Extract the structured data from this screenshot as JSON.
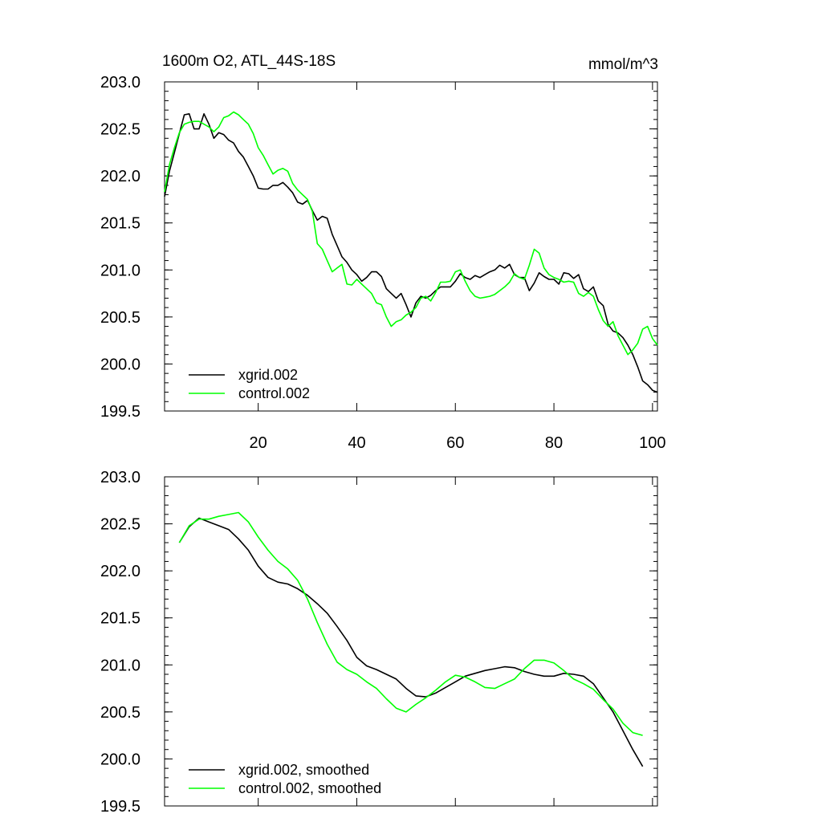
{
  "chart_data": [
    {
      "type": "line",
      "title": "1600m O2, ATL_44S-18S",
      "units": "mmol/m^3",
      "xlabel": "",
      "ylabel": "",
      "xlim": [
        1,
        101
      ],
      "ylim": [
        199.5,
        203.0
      ],
      "xticks": [
        20,
        40,
        60,
        80,
        100
      ],
      "xtick_labels": [
        "20",
        "40",
        "60",
        "80",
        "100"
      ],
      "yticks": [
        199.5,
        200.0,
        200.5,
        201.0,
        201.5,
        202.0,
        202.5,
        203.0
      ],
      "ytick_labels": [
        "199.5",
        "200.0",
        "200.5",
        "201.0",
        "201.5",
        "202.0",
        "202.5",
        "203.0"
      ],
      "legend_position": "bottom-left",
      "series": [
        {
          "name": "xgrid.002",
          "color": "#000000",
          "x": [
            1,
            2,
            3,
            4,
            5,
            6,
            7,
            8,
            9,
            10,
            11,
            12,
            13,
            14,
            15,
            16,
            17,
            18,
            19,
            20,
            21,
            22,
            23,
            24,
            25,
            26,
            27,
            28,
            29,
            30,
            31,
            32,
            33,
            34,
            35,
            36,
            37,
            38,
            39,
            40,
            41,
            42,
            43,
            44,
            45,
            46,
            47,
            48,
            49,
            50,
            51,
            52,
            53,
            54,
            55,
            56,
            57,
            58,
            59,
            60,
            61,
            62,
            63,
            64,
            65,
            66,
            67,
            68,
            69,
            70,
            71,
            72,
            73,
            74,
            75,
            76,
            77,
            78,
            79,
            80,
            81,
            82,
            83,
            84,
            85,
            86,
            87,
            88,
            89,
            90,
            91,
            92,
            93,
            94,
            95,
            96,
            97,
            98,
            99,
            100,
            101
          ],
          "values": [
            201.78,
            202.05,
            202.25,
            202.45,
            202.65,
            202.66,
            202.5,
            202.5,
            202.66,
            202.55,
            202.4,
            202.46,
            202.44,
            202.38,
            202.35,
            202.26,
            202.2,
            202.1,
            202.0,
            201.87,
            201.86,
            201.86,
            201.9,
            201.9,
            201.93,
            201.88,
            201.82,
            201.72,
            201.7,
            201.74,
            201.63,
            201.53,
            201.57,
            201.55,
            201.38,
            201.26,
            201.14,
            201.08,
            201.0,
            200.95,
            200.88,
            200.92,
            200.98,
            200.98,
            200.93,
            200.8,
            200.75,
            200.7,
            200.75,
            200.63,
            200.5,
            200.65,
            200.72,
            200.7,
            200.73,
            200.78,
            200.82,
            200.82,
            200.82,
            200.88,
            200.96,
            200.92,
            200.9,
            200.94,
            200.92,
            200.95,
            200.98,
            201.0,
            201.05,
            201.02,
            201.06,
            200.95,
            200.92,
            200.92,
            200.78,
            200.86,
            200.97,
            200.93,
            200.9,
            200.9,
            200.85,
            200.97,
            200.96,
            200.91,
            200.95,
            200.8,
            200.77,
            200.82,
            200.67,
            200.62,
            200.42,
            200.35,
            200.33,
            200.28,
            200.2,
            200.1,
            199.97,
            199.82,
            199.78,
            199.72,
            199.7
          ]
        },
        {
          "name": "control.002",
          "color": "#00ff00",
          "x": [
            1,
            2,
            3,
            4,
            5,
            6,
            7,
            8,
            9,
            10,
            11,
            12,
            13,
            14,
            15,
            16,
            17,
            18,
            19,
            20,
            21,
            22,
            23,
            24,
            25,
            26,
            27,
            28,
            29,
            30,
            31,
            32,
            33,
            34,
            35,
            36,
            37,
            38,
            39,
            40,
            41,
            42,
            43,
            44,
            45,
            46,
            47,
            48,
            49,
            50,
            51,
            52,
            53,
            54,
            55,
            56,
            57,
            58,
            59,
            60,
            61,
            62,
            63,
            64,
            65,
            66,
            67,
            68,
            69,
            70,
            71,
            72,
            73,
            74,
            75,
            76,
            77,
            78,
            79,
            80,
            81,
            82,
            83,
            84,
            85,
            86,
            87,
            88,
            89,
            90,
            91,
            92,
            93,
            94,
            95,
            96,
            97,
            98,
            99,
            100,
            101
          ],
          "values": [
            201.83,
            202.12,
            202.3,
            202.46,
            202.55,
            202.57,
            202.58,
            202.58,
            202.55,
            202.52,
            202.47,
            202.52,
            202.62,
            202.64,
            202.68,
            202.65,
            202.6,
            202.55,
            202.45,
            202.3,
            202.22,
            202.12,
            202.02,
            202.06,
            202.08,
            202.05,
            201.92,
            201.85,
            201.8,
            201.75,
            201.62,
            201.28,
            201.22,
            201.1,
            200.98,
            201.02,
            201.06,
            200.85,
            200.84,
            200.9,
            200.85,
            200.8,
            200.75,
            200.65,
            200.63,
            200.5,
            200.4,
            200.45,
            200.47,
            200.52,
            200.55,
            200.6,
            200.7,
            200.72,
            200.67,
            200.76,
            200.87,
            200.87,
            200.88,
            200.98,
            201.0,
            200.88,
            200.78,
            200.72,
            200.7,
            200.71,
            200.72,
            200.74,
            200.78,
            200.82,
            200.87,
            200.96,
            200.92,
            200.9,
            201.05,
            201.22,
            201.18,
            201.02,
            200.95,
            200.92,
            200.9,
            200.87,
            200.88,
            200.87,
            200.75,
            200.72,
            200.76,
            200.72,
            200.58,
            200.46,
            200.4,
            200.45,
            200.3,
            200.2,
            200.1,
            200.15,
            200.22,
            200.37,
            200.4,
            200.27,
            200.2
          ]
        }
      ]
    },
    {
      "type": "line",
      "title": "",
      "xlabel": "",
      "ylabel": "",
      "xlim": [
        1,
        101
      ],
      "ylim": [
        199.5,
        203.0
      ],
      "xticks": [
        20,
        40,
        60,
        80,
        100
      ],
      "xtick_labels": [],
      "yticks": [
        199.5,
        200.0,
        200.5,
        201.0,
        201.5,
        202.0,
        202.5,
        203.0
      ],
      "ytick_labels": [
        "199.5",
        "200.0",
        "200.5",
        "201.0",
        "201.5",
        "202.0",
        "202.5",
        "203.0"
      ],
      "legend_position": "bottom-left",
      "series": [
        {
          "name": "xgrid.002, smoothed",
          "color": "#000000",
          "x": [
            4,
            6,
            8,
            10,
            12,
            14,
            16,
            18,
            20,
            22,
            24,
            26,
            28,
            30,
            32,
            34,
            36,
            38,
            40,
            42,
            44,
            46,
            48,
            50,
            52,
            54,
            56,
            58,
            60,
            62,
            64,
            66,
            68,
            70,
            72,
            74,
            76,
            78,
            80,
            82,
            84,
            86,
            88,
            90,
            92,
            94,
            96,
            98
          ],
          "values": [
            202.3,
            202.47,
            202.56,
            202.52,
            202.48,
            202.44,
            202.34,
            202.22,
            202.05,
            201.93,
            201.88,
            201.86,
            201.81,
            201.74,
            201.65,
            201.55,
            201.41,
            201.26,
            201.08,
            200.99,
            200.95,
            200.9,
            200.85,
            200.75,
            200.67,
            200.66,
            200.7,
            200.76,
            200.82,
            200.88,
            200.91,
            200.94,
            200.96,
            200.98,
            200.97,
            200.93,
            200.9,
            200.88,
            200.88,
            200.91,
            200.9,
            200.88,
            200.8,
            200.65,
            200.5,
            200.3,
            200.1,
            199.92
          ]
        },
        {
          "name": "control.002, smoothed",
          "color": "#00ff00",
          "x": [
            4,
            6,
            8,
            10,
            12,
            14,
            16,
            18,
            20,
            22,
            24,
            26,
            28,
            30,
            32,
            34,
            36,
            38,
            40,
            42,
            44,
            46,
            48,
            50,
            52,
            54,
            56,
            58,
            60,
            62,
            64,
            66,
            68,
            70,
            72,
            74,
            76,
            78,
            80,
            82,
            84,
            86,
            88,
            90,
            92,
            94,
            96,
            98
          ],
          "values": [
            202.3,
            202.48,
            202.55,
            202.55,
            202.58,
            202.6,
            202.62,
            202.52,
            202.36,
            202.22,
            202.1,
            202.02,
            201.9,
            201.7,
            201.45,
            201.22,
            201.03,
            200.95,
            200.9,
            200.82,
            200.75,
            200.64,
            200.54,
            200.5,
            200.58,
            200.65,
            200.73,
            200.82,
            200.89,
            200.87,
            200.82,
            200.76,
            200.75,
            200.8,
            200.85,
            200.96,
            201.05,
            201.05,
            201.02,
            200.94,
            200.85,
            200.8,
            200.74,
            200.63,
            200.53,
            200.38,
            200.28,
            200.25
          ]
        }
      ]
    }
  ]
}
